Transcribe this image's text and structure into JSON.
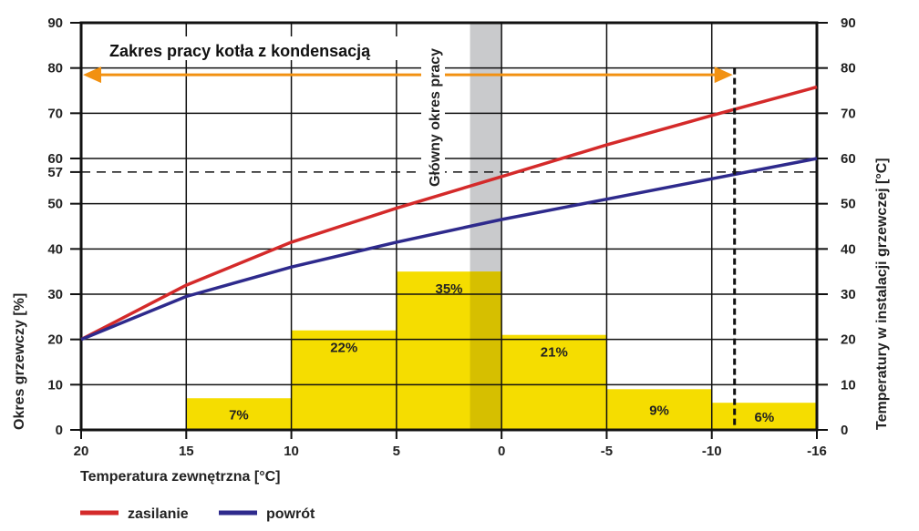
{
  "chart_data": {
    "type": "bar",
    "title": "Zakres pracy kotła z kondensacją",
    "annotation_vertical": "Główny okres pracy",
    "xlabel": "Temperatura zewnętrzna [°C]",
    "ylabel_left": "Okres grzewczy [%]",
    "ylabel_right": "Temperatury w instalacji grzewczej [°C]",
    "x_ticks": [
      20,
      15,
      10,
      5,
      0,
      -5,
      -10,
      -16
    ],
    "x_tick_labels": [
      "20",
      "15",
      "10",
      "5",
      "0",
      "-5",
      "-10",
      "-16"
    ],
    "y_ticks_left": [
      "0",
      "10",
      "20",
      "30",
      "40",
      "50",
      "57",
      "60",
      "70",
      "80",
      "90"
    ],
    "y_ticks_right": [
      "0",
      "10",
      "20",
      "30",
      "40",
      "50",
      "60",
      "70",
      "80",
      "90"
    ],
    "ylim": [
      0,
      90
    ],
    "grid": true,
    "bars": [
      {
        "from": 15,
        "to": 10,
        "value": 7,
        "label": "7%"
      },
      {
        "from": 10,
        "to": 5,
        "value": 22,
        "label": "22%"
      },
      {
        "from": 5,
        "to": 0,
        "value": 35,
        "label": "35%"
      },
      {
        "from": 0,
        "to": -5,
        "value": 21,
        "label": "21%"
      },
      {
        "from": -5,
        "to": -10,
        "value": 9,
        "label": "9%"
      },
      {
        "from": -10,
        "to": -16,
        "value": 6,
        "label": "6%"
      }
    ],
    "main_period_band": [
      1.5,
      0
    ],
    "reference_line_y": 57,
    "condensing_limit_x": -11.3,
    "condensing_range_y": 78.5,
    "series": [
      {
        "name": "zasilanie",
        "color": "#d42a2a",
        "x": [
          20,
          15,
          10,
          5,
          0,
          -5,
          -10,
          -16
        ],
        "y": [
          20,
          32,
          41.5,
          49,
          56,
          63,
          69.5,
          75.8
        ]
      },
      {
        "name": "powrót",
        "color": "#2e2a8c",
        "x": [
          20,
          15,
          10,
          5,
          0,
          -5,
          -10,
          -16
        ],
        "y": [
          20,
          29.5,
          36,
          41.5,
          46.5,
          51,
          55.5,
          60
        ]
      }
    ],
    "colors": {
      "bar": "#f5dd00",
      "bar_overlap": "#d6bf00",
      "band": "#c9cacc",
      "arrow": "#f29111"
    },
    "legend_position": "bottom-left"
  }
}
